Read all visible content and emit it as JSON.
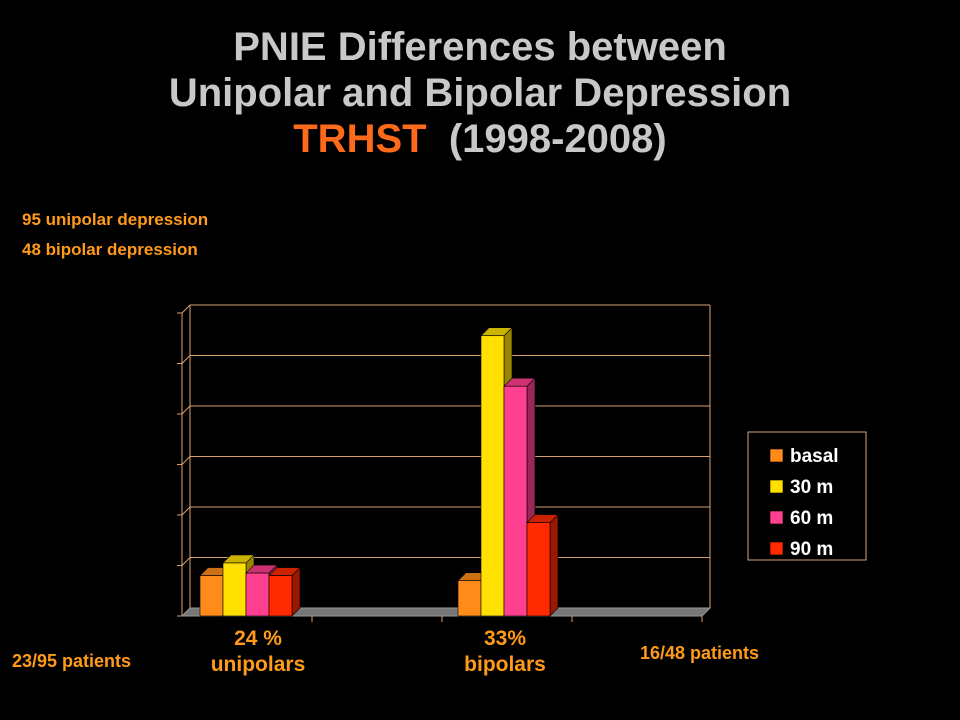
{
  "title": {
    "line1": "PNIE Differences between",
    "line2": "Unipolar and Bipolar Depression",
    "line3_accent": "TRHST",
    "line3_rest": "(1998-2008)"
  },
  "notes": {
    "unipolar_count": "95 unipolar depression",
    "bipolar_count": "48 bipolar depression"
  },
  "patients": {
    "unipolar": "23/95 patients",
    "bipolar": "16/48 patients"
  },
  "colors": {
    "basal": "#ff8c1a",
    "30 m": "#ffe000",
    "60 m": "#ff3f8f",
    "90 m": "#ff2a00",
    "grid": "#d8a070"
  },
  "chart_data": {
    "type": "bar",
    "categories": [
      "unipolars",
      "bipolars"
    ],
    "category_labels": [
      {
        "percent": "24 %",
        "group": "unipolars"
      },
      {
        "percent": "33%",
        "group": "bipolars"
      }
    ],
    "series": [
      {
        "name": "basal",
        "values": [
          0.8,
          0.7
        ]
      },
      {
        "name": "30 m",
        "values": [
          1.05,
          5.55
        ]
      },
      {
        "name": "60 m",
        "values": [
          0.85,
          4.55
        ]
      },
      {
        "name": "90 m",
        "values": [
          0.8,
          1.85
        ]
      }
    ],
    "ylim": [
      0,
      6
    ],
    "grid": true,
    "legend": "right"
  }
}
